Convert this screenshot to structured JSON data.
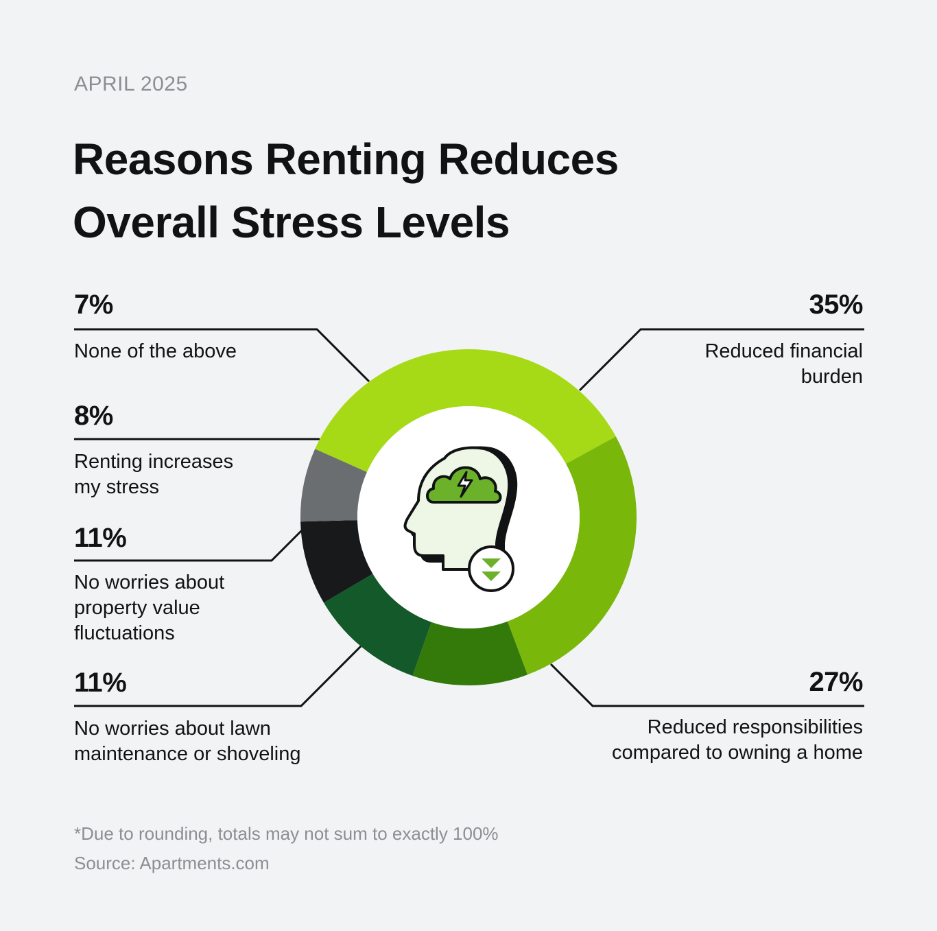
{
  "header": {
    "date": "APRIL 2025",
    "title": "Reasons Renting Reduces Overall Stress Levels"
  },
  "chart_data": {
    "type": "pie",
    "title": "Reasons Renting Reduces Overall Stress Levels",
    "subtitle": "APRIL 2025",
    "center_icon": "head-with-stress-cloud-and-down-arrows-icon",
    "slices": [
      {
        "label": "Reduced financial burden",
        "value": 35,
        "display": "35%",
        "color": "#a6d916"
      },
      {
        "label": "Reduced responsibilities compared to owning a home",
        "value": 27,
        "display": "27%",
        "color": "#79b70b"
      },
      {
        "label": "No worries about lawn maintenance or shoveling",
        "value": 11,
        "display": "11%",
        "color": "#337a0a"
      },
      {
        "label": "No worries about property value fluctuations",
        "value": 11,
        "display": "11%",
        "color": "#14592a"
      },
      {
        "label": "Renting increases my stress",
        "value": 8,
        "display": "8%",
        "color": "#18191b"
      },
      {
        "label": "None of the above",
        "value": 7,
        "display": "7%",
        "color": "#6b6e71"
      }
    ]
  },
  "labels": {
    "s0_label": "Reduced financial\nburden",
    "s1_label": "Reduced responsibilities\ncompared to owning a home",
    "s2_label": "No worries about lawn\nmaintenance or shoveling",
    "s3_label": "No worries about\nproperty value\nfluctuations",
    "s4_label": "Renting increases\nmy stress",
    "s5_label": "None of the above"
  },
  "footer": {
    "note": "*Due to rounding, totals may not sum to exactly 100%",
    "source": "Source: Apartments.com"
  }
}
